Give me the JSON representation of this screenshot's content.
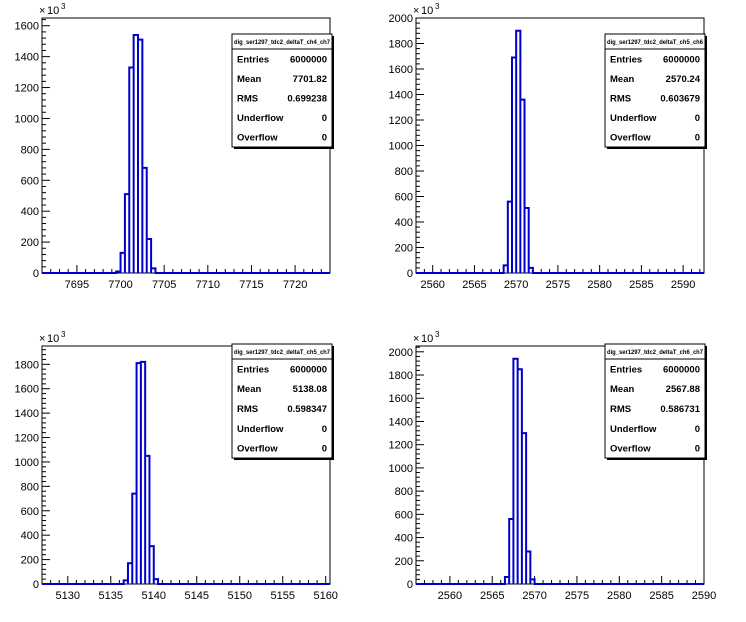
{
  "chart_data": [
    {
      "type": "histogram",
      "name": "dig_ser1297_tdc2_deltaT_ch4_ch7",
      "exponent_label": "10",
      "exponent_power": "3",
      "xlim": [
        7691,
        7724
      ],
      "ylim": [
        0,
        1650
      ],
      "xticks": [
        "7695",
        "7700",
        "7705",
        "7710",
        "7715",
        "7720"
      ],
      "yticks": [
        "0",
        "200",
        "400",
        "600",
        "800",
        "1000",
        "1200",
        "1400",
        "1600"
      ],
      "bins": [
        [
          7699.5,
          7700,
          10
        ],
        [
          7700,
          7700.5,
          130
        ],
        [
          7700.5,
          7701,
          510
        ],
        [
          7701,
          7701.5,
          1330
        ],
        [
          7701.5,
          7702,
          1540
        ],
        [
          7702,
          7702.5,
          1510
        ],
        [
          7702.5,
          7703,
          680
        ],
        [
          7703,
          7703.5,
          220
        ],
        [
          7703.5,
          7704,
          30
        ]
      ],
      "stats": [
        {
          "label": "Entries",
          "value": "6000000"
        },
        {
          "label": "Mean",
          "value": "7701.82"
        },
        {
          "label": "RMS",
          "value": "0.699238"
        },
        {
          "label": "Underflow",
          "value": "0"
        },
        {
          "label": "Overflow",
          "value": "0"
        }
      ]
    },
    {
      "type": "histogram",
      "name": "dig_ser1297_tdc2_deltaT_ch5_ch6",
      "exponent_label": "10",
      "exponent_power": "3",
      "xlim": [
        2558,
        2592.5
      ],
      "ylim": [
        0,
        2000
      ],
      "xticks": [
        "2560",
        "2565",
        "2570",
        "2575",
        "2580",
        "2585",
        "2590"
      ],
      "yticks": [
        "0",
        "200",
        "400",
        "600",
        "800",
        "1000",
        "1200",
        "1400",
        "1600",
        "1800",
        "2000"
      ],
      "bins": [
        [
          2568.5,
          2569,
          60
        ],
        [
          2569,
          2569.5,
          560
        ],
        [
          2569.5,
          2570,
          1690
        ],
        [
          2570,
          2570.5,
          1900
        ],
        [
          2570.5,
          2571,
          1360
        ],
        [
          2571,
          2571.5,
          510
        ],
        [
          2571.5,
          2572,
          40
        ]
      ],
      "stats": [
        {
          "label": "Entries",
          "value": "6000000"
        },
        {
          "label": "Mean",
          "value": "2570.24"
        },
        {
          "label": "RMS",
          "value": "0.603679"
        },
        {
          "label": "Underflow",
          "value": "0"
        },
        {
          "label": "Overflow",
          "value": "0"
        }
      ]
    },
    {
      "type": "histogram",
      "name": "dig_ser1297_tdc2_deltaT_ch5_ch7",
      "exponent_label": "10",
      "exponent_power": "3",
      "xlim": [
        5127,
        5160.5
      ],
      "ylim": [
        0,
        1950
      ],
      "xticks": [
        "5130",
        "5135",
        "5140",
        "5145",
        "5150",
        "5155",
        "5160"
      ],
      "yticks": [
        "0",
        "200",
        "400",
        "600",
        "800",
        "1000",
        "1200",
        "1400",
        "1600",
        "1800"
      ],
      "bins": [
        [
          5136.5,
          5137,
          30
        ],
        [
          5137,
          5137.5,
          170
        ],
        [
          5137.5,
          5138,
          740
        ],
        [
          5138,
          5138.5,
          1810
        ],
        [
          5138.5,
          5139,
          1820
        ],
        [
          5139,
          5139.5,
          1050
        ],
        [
          5139.5,
          5140,
          310
        ],
        [
          5140,
          5140.5,
          40
        ]
      ],
      "stats": [
        {
          "label": "Entries",
          "value": "6000000"
        },
        {
          "label": "Mean",
          "value": "5138.08"
        },
        {
          "label": "RMS",
          "value": "0.598347"
        },
        {
          "label": "Underflow",
          "value": "0"
        },
        {
          "label": "Overflow",
          "value": "0"
        }
      ]
    },
    {
      "type": "histogram",
      "name": "dig_ser1297_tdc2_deltaT_ch6_ch7",
      "exponent_label": "10",
      "exponent_power": "3",
      "xlim": [
        2556,
        2590
      ],
      "ylim": [
        0,
        2050
      ],
      "xticks": [
        "2560",
        "2565",
        "2570",
        "2575",
        "2580",
        "2585",
        "2590"
      ],
      "yticks": [
        "0",
        "200",
        "400",
        "600",
        "800",
        "1000",
        "1200",
        "1400",
        "1600",
        "1800",
        "2000"
      ],
      "bins": [
        [
          2566.5,
          2567,
          60
        ],
        [
          2567,
          2567.5,
          560
        ],
        [
          2567.5,
          2568,
          1940
        ],
        [
          2568,
          2568.5,
          1850
        ],
        [
          2568.5,
          2569,
          1300
        ],
        [
          2569,
          2569.5,
          280
        ],
        [
          2569.5,
          2570,
          40
        ]
      ],
      "stats": [
        {
          "label": "Entries",
          "value": "6000000"
        },
        {
          "label": "Mean",
          "value": "2567.88"
        },
        {
          "label": "RMS",
          "value": "0.586731"
        },
        {
          "label": "Underflow",
          "value": "0"
        },
        {
          "label": "Overflow",
          "value": "0"
        }
      ]
    }
  ]
}
